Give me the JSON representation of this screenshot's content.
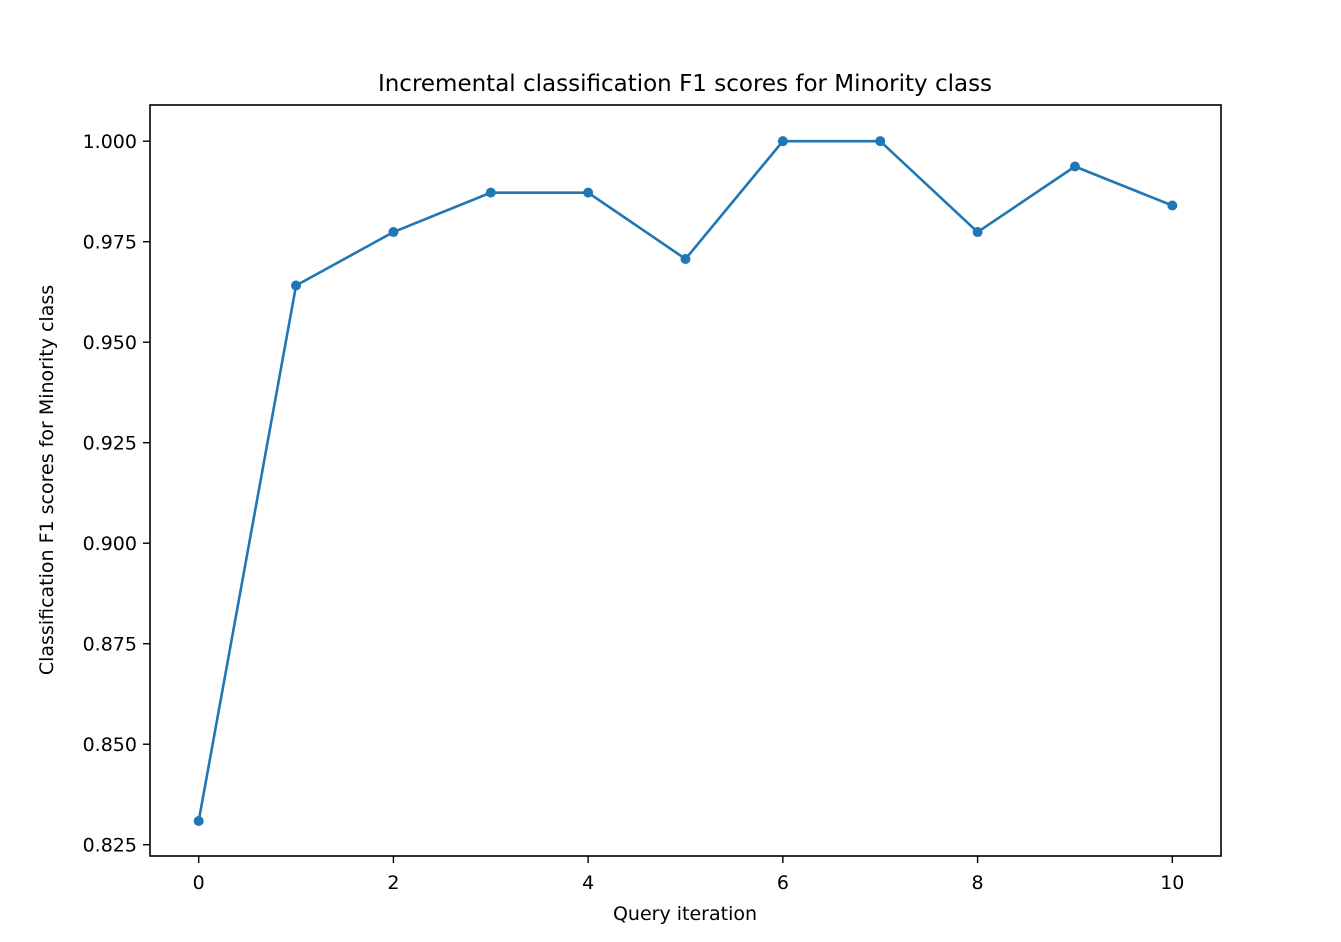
{
  "chart_data": {
    "type": "line",
    "title": "Incremental classification F1 scores for Minority class",
    "xlabel": "Query iteration",
    "ylabel": "Classification F1 scores for Minority class",
    "xlim": [
      -0.5,
      10.5
    ],
    "ylim": [
      0.8222,
      1.009
    ],
    "xticks": [
      0,
      2,
      4,
      6,
      8,
      10
    ],
    "xtick_labels": [
      "0",
      "2",
      "4",
      "6",
      "8",
      "10"
    ],
    "yticks": [
      0.825,
      0.85,
      0.875,
      0.9,
      0.925,
      0.95,
      0.975,
      1.0
    ],
    "ytick_labels": [
      "0.825",
      "0.850",
      "0.875",
      "0.900",
      "0.925",
      "0.950",
      "0.975",
      "1.000"
    ],
    "grid": false,
    "legend": "none",
    "series": [
      {
        "color": "#1f77b4",
        "marker": "circle",
        "x": [
          0,
          1,
          2,
          3,
          4,
          5,
          6,
          7,
          8,
          9,
          10
        ],
        "y": [
          0.8309,
          0.9641,
          0.9774,
          0.9872,
          0.9872,
          0.9707,
          1.0,
          1.0,
          0.9774,
          0.9937,
          0.984
        ]
      }
    ]
  }
}
